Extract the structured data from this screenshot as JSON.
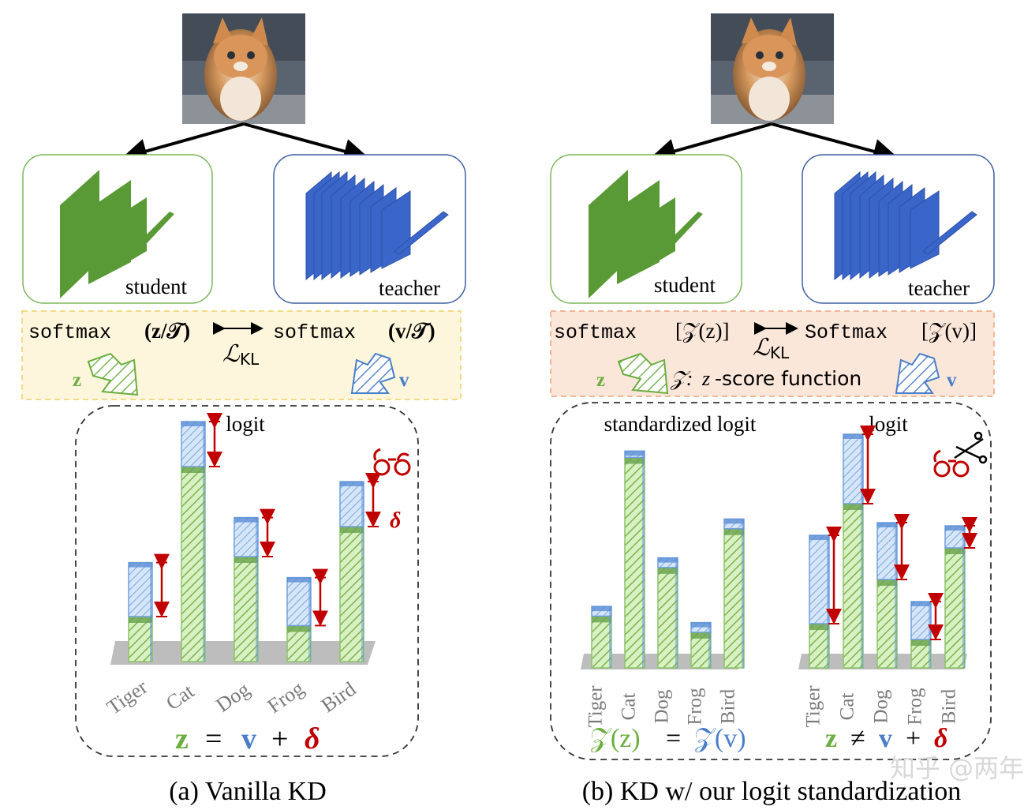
{
  "panel_a": {
    "caption": "(a) Vanilla KD",
    "student_label": "student",
    "teacher_label": "teacher",
    "formula_left": "softmax",
    "formula_left_arg": "(z/𝒯)",
    "formula_right": "softmax",
    "formula_right_arg": "(v/𝒯)",
    "loss_label": "ℒ",
    "loss_sub": "KL",
    "arrow_left_label": "z",
    "arrow_right_label": "v",
    "chart_title": "logit",
    "delta_label": "δ",
    "eq_z": "z",
    "eq_eq": "=",
    "eq_v": "v",
    "eq_plus": "+",
    "eq_d": "δ"
  },
  "panel_b": {
    "caption": "(b) KD w/ our logit standardization",
    "student_label": "student",
    "teacher_label": "teacher",
    "formula_left": "softmax",
    "formula_left_arg": "[𝒵(z)]",
    "formula_right": "Softmax",
    "formula_right_arg": "[𝒵(v)]",
    "loss_label": "ℒ",
    "loss_sub": "KL",
    "arrow_left_label": "z",
    "arrow_right_label": "v",
    "zscore_note_sym": "𝒵:",
    "zscore_note_z": "z",
    "zscore_note_rest": "-score function",
    "chart1_title": "standardized logit",
    "chart2_title": "logit",
    "eq1_left": "𝒵(z)",
    "eq1_eq": "=",
    "eq1_right": "𝒵(v)",
    "eq2_z": "z",
    "eq2_neq": "≠",
    "eq2_v": "v",
    "eq2_plus": "+",
    "eq2_d": "δ"
  },
  "watermark": "知乎 @两年后",
  "colors": {
    "student_green": "#5e9a3a",
    "teacher_blue": "#3a63c8",
    "delta_red": "#c00000",
    "z_green": "#6cae3f",
    "v_blue": "#4a7ec9"
  },
  "chart_data": [
    {
      "type": "bar",
      "title": "logit",
      "categories": [
        "Tiger",
        "Cat",
        "Dog",
        "Frog",
        "Bird"
      ],
      "series": [
        {
          "values": [
            1.5,
            6.5,
            3.5,
            1.2,
            4.5
          ]
        },
        {
          "values": [
            1.8,
            1.5,
            1.3,
            1.6,
            1.5
          ]
        }
      ]
    },
    {
      "type": "bar",
      "title": "standardized logit",
      "categories": [
        "Tiger",
        "Cat",
        "Dog",
        "Frog",
        "Bird"
      ],
      "series": [
        {
          "values": [
            1.6,
            6.5,
            3.1,
            1.1,
            4.3
          ]
        },
        {
          "values": [
            0.3,
            0.2,
            0.3,
            0.3,
            0.3
          ]
        }
      ]
    },
    {
      "type": "bar",
      "title": "logit",
      "categories": [
        "Tiger",
        "Cat",
        "Dog",
        "Frog",
        "Bird"
      ],
      "series": [
        {
          "values": [
            1.4,
            5.2,
            2.8,
            0.9,
            3.8
          ]
        },
        {
          "values": [
            2.8,
            2.2,
            1.8,
            1.2,
            0.7
          ]
        }
      ]
    }
  ]
}
